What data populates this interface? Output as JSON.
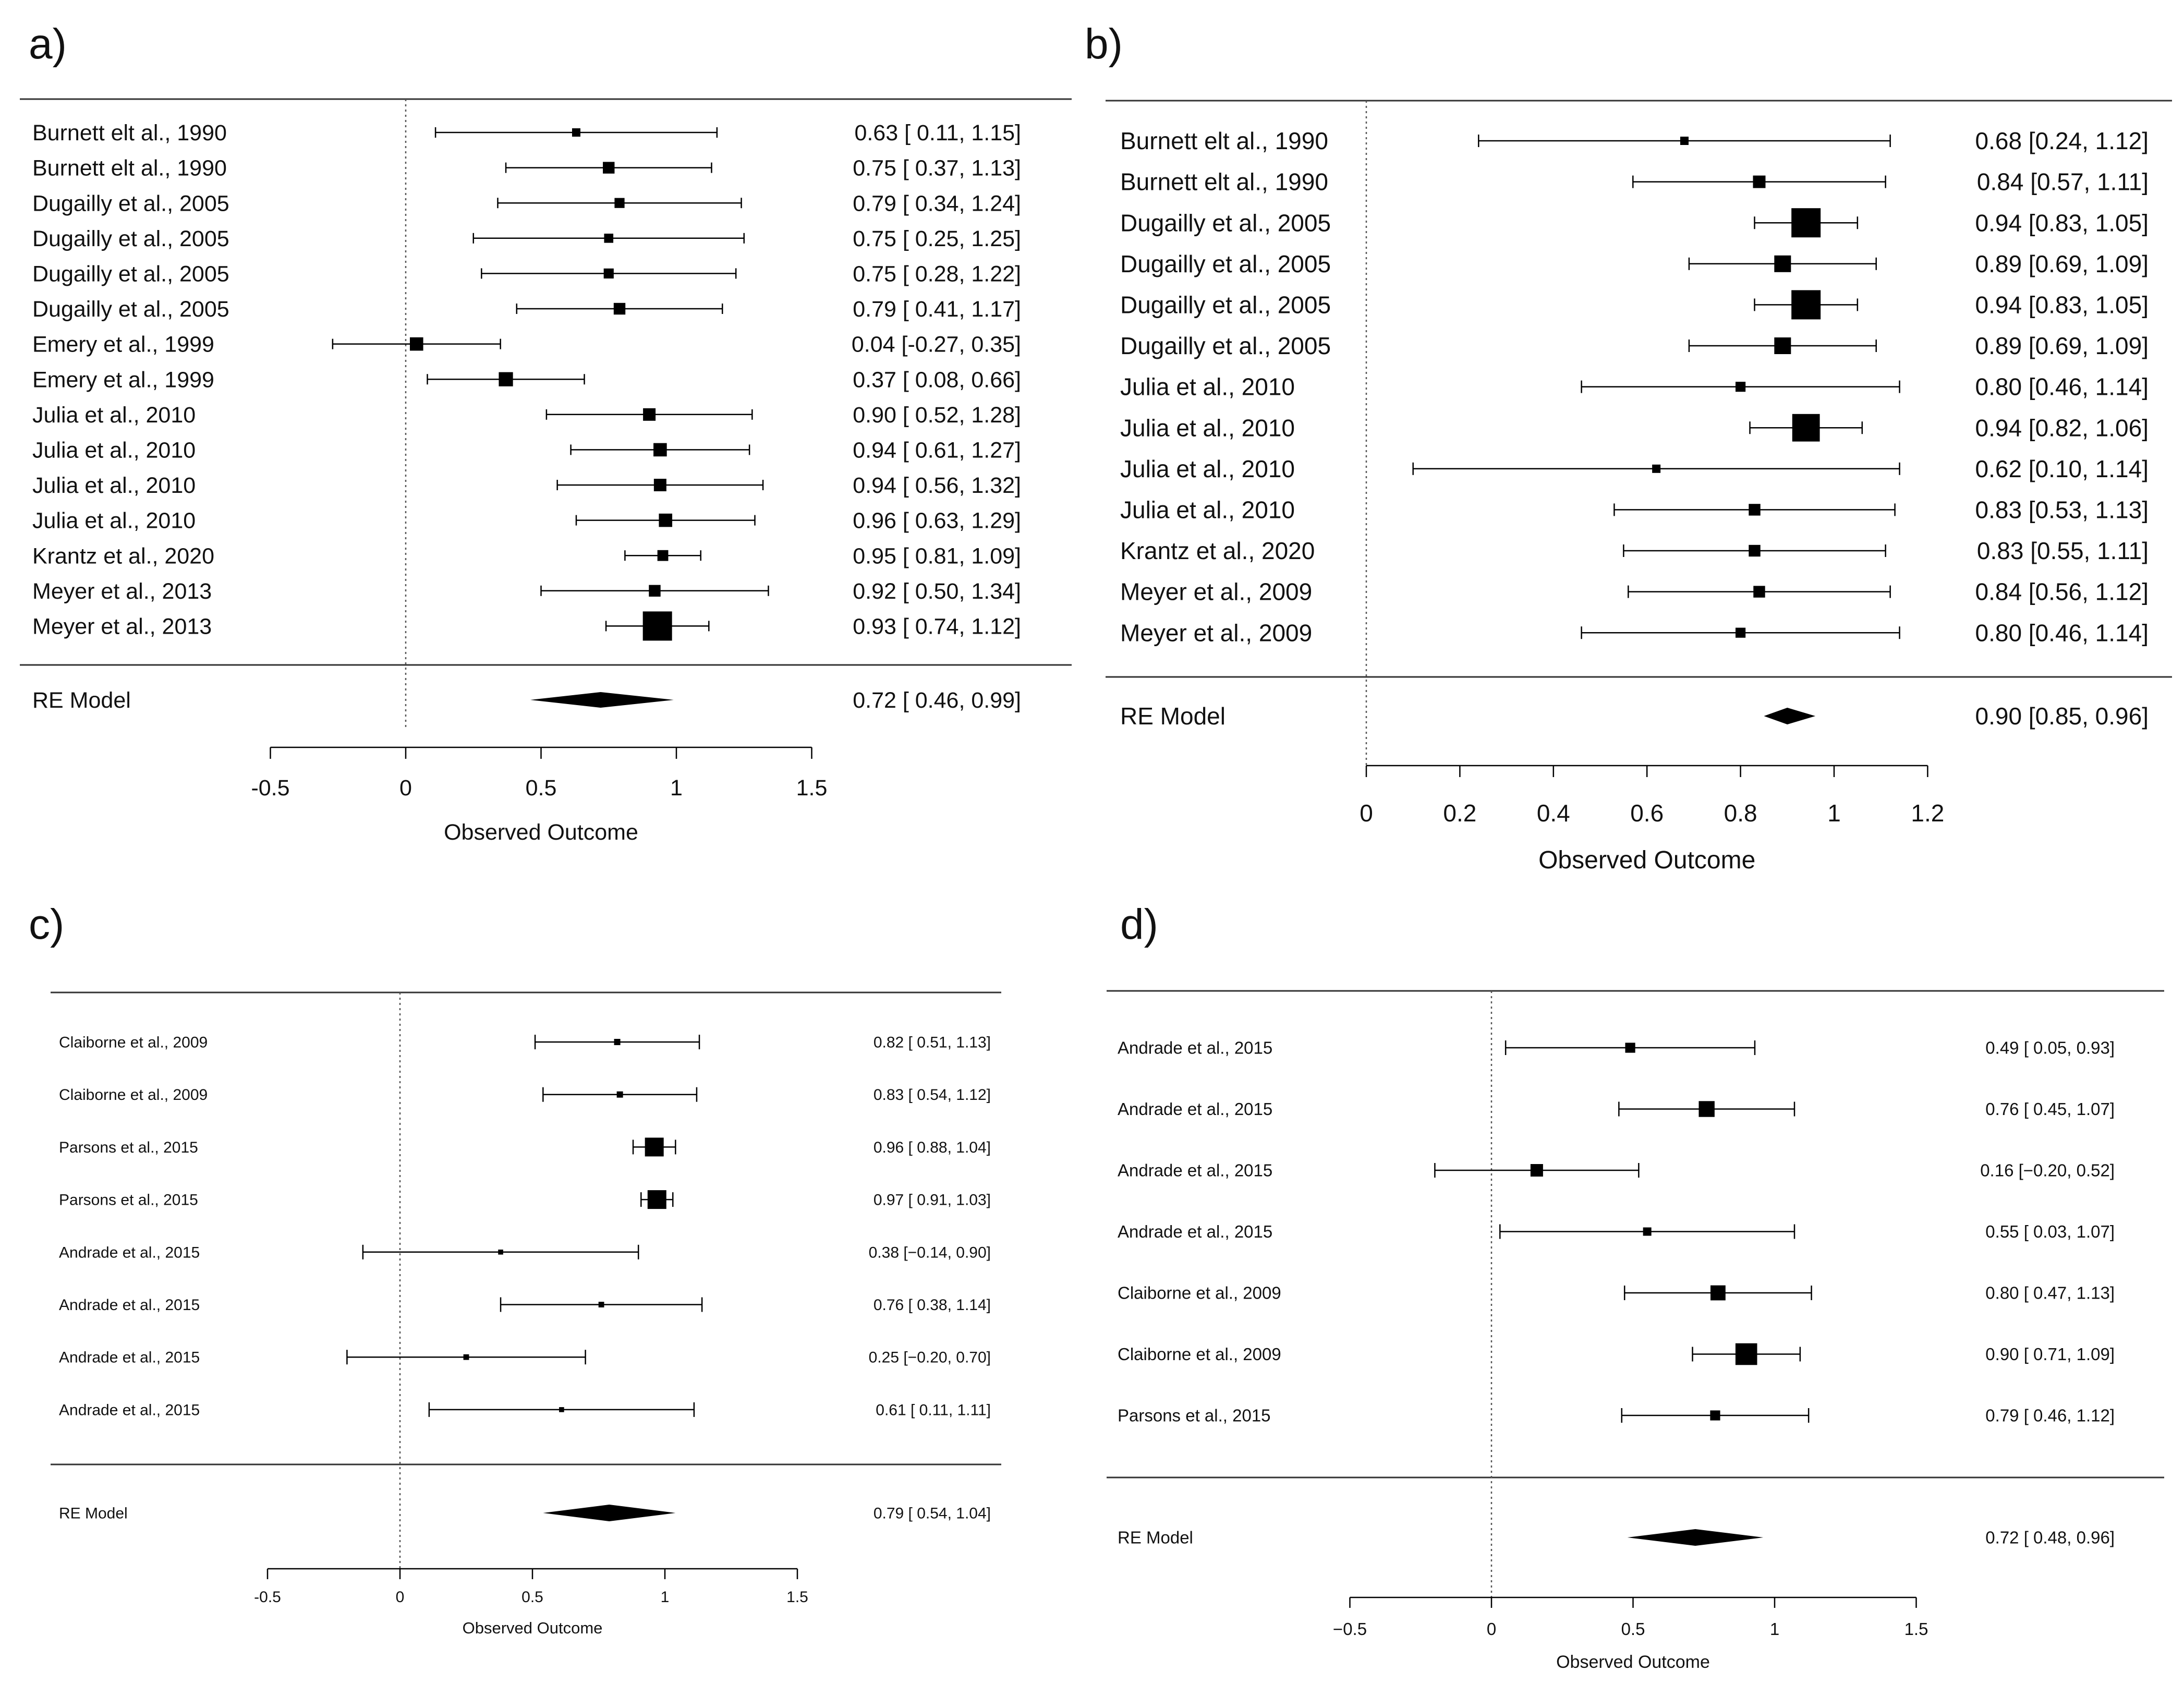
{
  "chart_data": [
    {
      "panel_label": "a)",
      "type": "forest",
      "xlabel": "Observed Outcome",
      "xlim": [
        -0.5,
        1.5
      ],
      "ticks": [
        -0.5,
        0,
        0.5,
        1,
        1.5
      ],
      "tick_labels": [
        "-0.5",
        "0",
        "0.5",
        "1",
        "1.5"
      ],
      "reference_line": 0,
      "studies": [
        {
          "label": "Burnett elt al., 1990",
          "est": 0.63,
          "lo": 0.11,
          "hi": 1.15,
          "w": 1.0,
          "text": "0.63 [ 0.11, 1.15]"
        },
        {
          "label": "Burnett elt al., 1990",
          "est": 0.75,
          "lo": 0.37,
          "hi": 1.13,
          "w": 1.4,
          "text": "0.75 [ 0.37, 1.13]"
        },
        {
          "label": "Dugailly et al., 2005",
          "est": 0.79,
          "lo": 0.34,
          "hi": 1.24,
          "w": 1.2,
          "text": "0.79 [ 0.34, 1.24]"
        },
        {
          "label": "Dugailly et al., 2005",
          "est": 0.75,
          "lo": 0.25,
          "hi": 1.25,
          "w": 1.1,
          "text": "0.75 [ 0.25, 1.25]"
        },
        {
          "label": "Dugailly et al., 2005",
          "est": 0.75,
          "lo": 0.28,
          "hi": 1.22,
          "w": 1.2,
          "text": "0.75 [ 0.28, 1.22]"
        },
        {
          "label": "Dugailly et al., 2005",
          "est": 0.79,
          "lo": 0.41,
          "hi": 1.17,
          "w": 1.4,
          "text": "0.79 [ 0.41, 1.17]"
        },
        {
          "label": "Emery  et al., 1999",
          "est": 0.04,
          "lo": -0.27,
          "hi": 0.35,
          "w": 1.6,
          "text": "0.04 [-0.27, 0.35]"
        },
        {
          "label": "Emery  et al., 1999",
          "est": 0.37,
          "lo": 0.08,
          "hi": 0.66,
          "w": 1.7,
          "text": "0.37 [ 0.08, 0.66]"
        },
        {
          "label": "Julia et al., 2010",
          "est": 0.9,
          "lo": 0.52,
          "hi": 1.28,
          "w": 1.5,
          "text": "0.90 [ 0.52, 1.28]"
        },
        {
          "label": "Julia et al., 2010",
          "est": 0.94,
          "lo": 0.61,
          "hi": 1.27,
          "w": 1.6,
          "text": "0.94 [ 0.61, 1.27]"
        },
        {
          "label": "Julia et al., 2010",
          "est": 0.94,
          "lo": 0.56,
          "hi": 1.32,
          "w": 1.5,
          "text": "0.94 [ 0.56, 1.32]"
        },
        {
          "label": "Julia et al., 2010",
          "est": 0.96,
          "lo": 0.63,
          "hi": 1.29,
          "w": 1.6,
          "text": "0.96 [ 0.63, 1.29]"
        },
        {
          "label": "Krantz et al., 2020",
          "est": 0.95,
          "lo": 0.81,
          "hi": 1.09,
          "w": 1.3,
          "text": "0.95 [ 0.81, 1.09]"
        },
        {
          "label": "Meyer et al., 2013",
          "est": 0.92,
          "lo": 0.5,
          "hi": 1.34,
          "w": 1.4,
          "text": "0.92 [ 0.50, 1.34]"
        },
        {
          "label": "Meyer et al., 2013",
          "est": 0.93,
          "lo": 0.74,
          "hi": 1.12,
          "w": 3.5,
          "text": "0.93 [ 0.74, 1.12]"
        }
      ],
      "summary": {
        "label": "RE Model",
        "est": 0.72,
        "lo": 0.46,
        "hi": 0.99,
        "text": "0.72 [ 0.46, 0.99]"
      }
    },
    {
      "panel_label": "b)",
      "type": "forest",
      "xlabel": "Observed Outcome",
      "xlim": [
        0,
        1.2
      ],
      "ticks": [
        0,
        0.2,
        0.4,
        0.6,
        0.8,
        1,
        1.2
      ],
      "tick_labels": [
        "0",
        "0.2",
        "0.4",
        "0.6",
        "0.8",
        "1",
        "1.2"
      ],
      "reference_line": 0,
      "studies": [
        {
          "label": "Burnett elt al., 1990",
          "est": 0.68,
          "lo": 0.24,
          "hi": 1.12,
          "w": 1.0,
          "text": "0.68 [0.24, 1.12]"
        },
        {
          "label": "Burnett elt al., 1990",
          "est": 0.84,
          "lo": 0.57,
          "hi": 1.11,
          "w": 1.5,
          "text": "0.84 [0.57, 1.11]"
        },
        {
          "label": "Dugailly et al., 2005",
          "est": 0.94,
          "lo": 0.83,
          "hi": 1.05,
          "w": 3.5,
          "text": "0.94 [0.83, 1.05]"
        },
        {
          "label": "Dugailly et al., 2005",
          "est": 0.89,
          "lo": 0.69,
          "hi": 1.09,
          "w": 2.0,
          "text": "0.89 [0.69, 1.09]"
        },
        {
          "label": "Dugailly et al., 2005",
          "est": 0.94,
          "lo": 0.83,
          "hi": 1.05,
          "w": 3.5,
          "text": "0.94 [0.83, 1.05]"
        },
        {
          "label": "Dugailly et al., 2005",
          "est": 0.89,
          "lo": 0.69,
          "hi": 1.09,
          "w": 2.0,
          "text": "0.89 [0.69, 1.09]"
        },
        {
          "label": "Julia et al., 2010",
          "est": 0.8,
          "lo": 0.46,
          "hi": 1.14,
          "w": 1.2,
          "text": "0.80 [0.46, 1.14]"
        },
        {
          "label": "Julia et al., 2010",
          "est": 0.94,
          "lo": 0.82,
          "hi": 1.06,
          "w": 3.3,
          "text": "0.94 [0.82, 1.06]"
        },
        {
          "label": "Julia et al., 2010",
          "est": 0.62,
          "lo": 0.1,
          "hi": 1.14,
          "w": 1.0,
          "text": "0.62 [0.10, 1.14]"
        },
        {
          "label": "Julia et al., 2010",
          "est": 0.83,
          "lo": 0.53,
          "hi": 1.13,
          "w": 1.4,
          "text": "0.83 [0.53, 1.13]"
        },
        {
          "label": "Krantz et al., 2020",
          "est": 0.83,
          "lo": 0.55,
          "hi": 1.11,
          "w": 1.4,
          "text": "0.83 [0.55, 1.11]"
        },
        {
          "label": "Meyer et al., 2009",
          "est": 0.84,
          "lo": 0.56,
          "hi": 1.12,
          "w": 1.4,
          "text": "0.84 [0.56, 1.12]"
        },
        {
          "label": "Meyer et al., 2009",
          "est": 0.8,
          "lo": 0.46,
          "hi": 1.14,
          "w": 1.2,
          "text": "0.80 [0.46, 1.14]"
        }
      ],
      "summary": {
        "label": "RE Model",
        "est": 0.9,
        "lo": 0.85,
        "hi": 0.96,
        "text": "0.90 [0.85, 0.96]"
      }
    },
    {
      "panel_label": "c)",
      "type": "forest",
      "xlabel": "Observed Outcome",
      "xlim": [
        -0.5,
        1.5
      ],
      "ticks": [
        -0.5,
        0,
        0.5,
        1,
        1.5
      ],
      "tick_labels": [
        "-0.5",
        "0",
        "0.5",
        "1",
        "1.5"
      ],
      "reference_line": 0,
      "studies": [
        {
          "label": "Claiborne et al., 2009",
          "est": 0.82,
          "lo": 0.51,
          "hi": 1.13,
          "w": 1.0,
          "text": "0.82 [ 0.51, 1.13]"
        },
        {
          "label": "Claiborne et al., 2009",
          "est": 0.83,
          "lo": 0.54,
          "hi": 1.12,
          "w": 1.0,
          "text": "0.83 [ 0.54, 1.12]"
        },
        {
          "label": "Parsons et al., 2015",
          "est": 0.96,
          "lo": 0.88,
          "hi": 1.04,
          "w": 3.0,
          "text": "0.96 [ 0.88, 1.04]"
        },
        {
          "label": "Parsons et al., 2015",
          "est": 0.97,
          "lo": 0.91,
          "hi": 1.03,
          "w": 3.0,
          "text": "0.97 [ 0.91, 1.03]"
        },
        {
          "label": "Andrade et al., 2015",
          "est": 0.38,
          "lo": -0.14,
          "hi": 0.9,
          "w": 0.8,
          "text": "0.38 [−0.14, 0.90]"
        },
        {
          "label": "Andrade et al., 2015",
          "est": 0.76,
          "lo": 0.38,
          "hi": 1.14,
          "w": 0.9,
          "text": "0.76 [ 0.38, 1.14]"
        },
        {
          "label": "Andrade et al., 2015",
          "est": 0.25,
          "lo": -0.2,
          "hi": 0.7,
          "w": 0.9,
          "text": "0.25 [−0.20, 0.70]"
        },
        {
          "label": "Andrade et al., 2015",
          "est": 0.61,
          "lo": 0.11,
          "hi": 1.11,
          "w": 0.8,
          "text": "0.61 [ 0.11, 1.11]"
        }
      ],
      "summary": {
        "label": "RE Model",
        "est": 0.79,
        "lo": 0.54,
        "hi": 1.04,
        "text": "0.79 [ 0.54, 1.04]"
      }
    },
    {
      "panel_label": "d)",
      "type": "forest",
      "xlabel": "Observed Outcome",
      "xlim": [
        -0.5,
        1.5
      ],
      "ticks": [
        -0.5,
        0,
        0.5,
        1,
        1.5
      ],
      "tick_labels": [
        "−0.5",
        "0",
        "0.5",
        "1",
        "1.5"
      ],
      "reference_line": 0,
      "studies": [
        {
          "label": "Andrade et al., 2015",
          "est": 0.49,
          "lo": 0.05,
          "hi": 0.93,
          "w": 1.2,
          "text": "0.49 [ 0.05, 0.93]"
        },
        {
          "label": "Andrade et al., 2015",
          "est": 0.76,
          "lo": 0.45,
          "hi": 1.07,
          "w": 1.9,
          "text": "0.76 [ 0.45, 1.07]"
        },
        {
          "label": "Andrade et al., 2015",
          "est": 0.16,
          "lo": -0.2,
          "hi": 0.52,
          "w": 1.5,
          "text": "0.16 [−0.20, 0.52]"
        },
        {
          "label": "Andrade et al., 2015",
          "est": 0.55,
          "lo": 0.03,
          "hi": 1.07,
          "w": 1.0,
          "text": "0.55 [ 0.03, 1.07]"
        },
        {
          "label": "Claiborne et al., 2009",
          "est": 0.8,
          "lo": 0.47,
          "hi": 1.13,
          "w": 1.8,
          "text": "0.80 [ 0.47, 1.13]"
        },
        {
          "label": "Claiborne et al., 2009",
          "est": 0.9,
          "lo": 0.71,
          "hi": 1.09,
          "w": 2.6,
          "text": "0.90 [ 0.71, 1.09]"
        },
        {
          "label": "Parsons et al., 2015",
          "est": 0.79,
          "lo": 0.46,
          "hi": 1.12,
          "w": 1.2,
          "text": "0.79 [ 0.46, 1.12]"
        }
      ],
      "summary": {
        "label": "RE Model",
        "est": 0.72,
        "lo": 0.48,
        "hi": 0.96,
        "text": "0.72 [ 0.48, 0.96]"
      }
    }
  ]
}
